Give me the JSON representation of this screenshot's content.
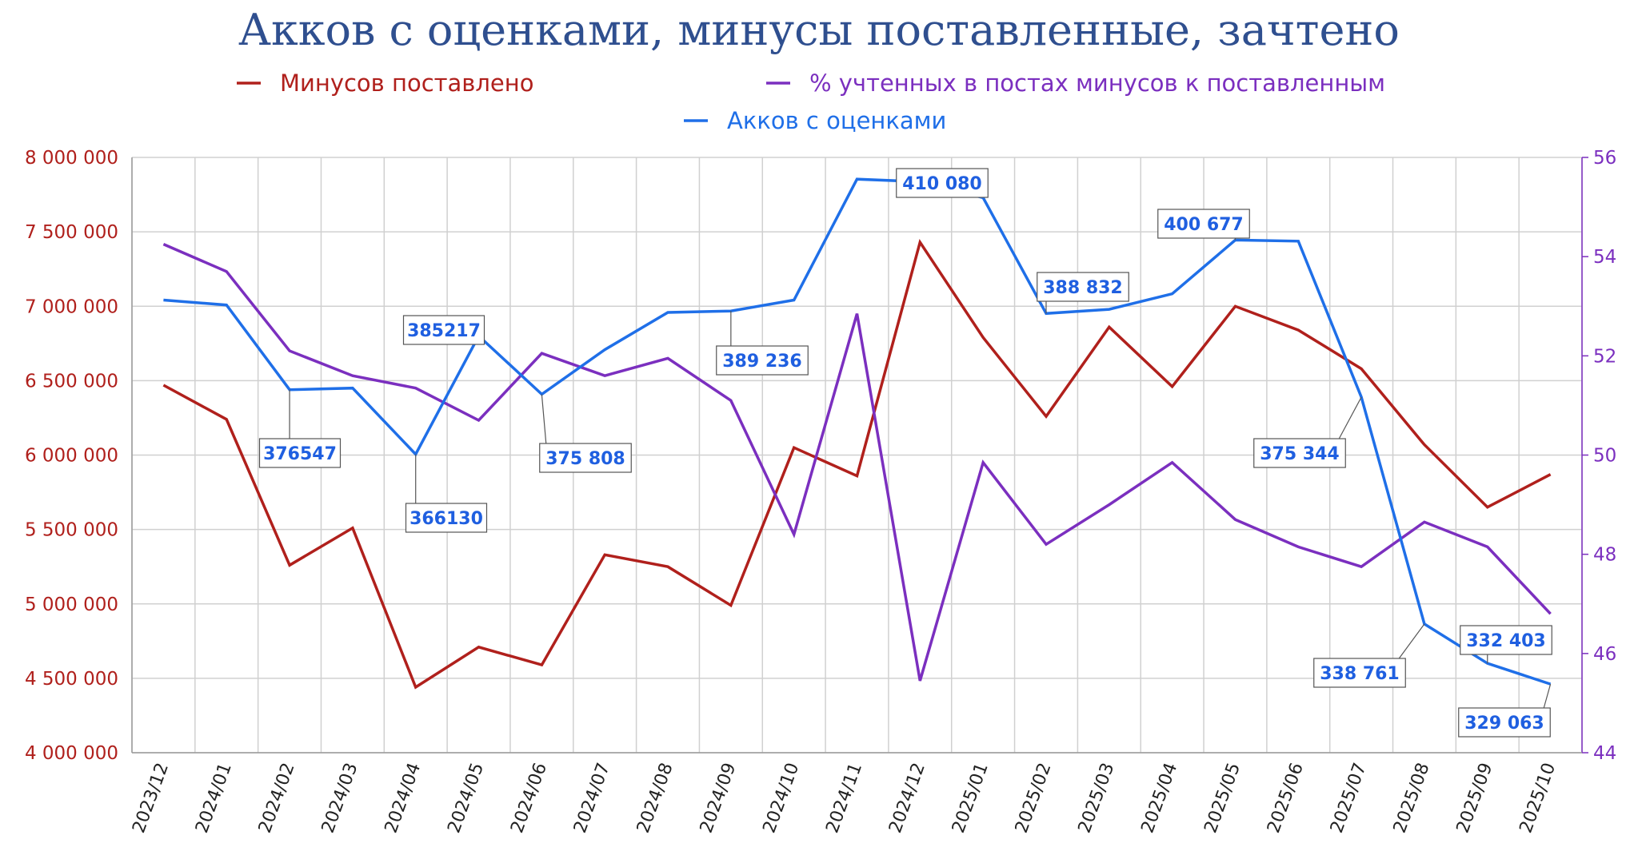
{
  "chart_data": {
    "type": "line",
    "title": "Акков с оценками, минусы поставленные, зачтено",
    "categories": [
      "2023/12",
      "2024/01",
      "2024/02",
      "2024/03",
      "2024/04",
      "2024/05",
      "2024/06",
      "2024/07",
      "2024/08",
      "2024/09",
      "2024/10",
      "2024/11",
      "2024/12",
      "2025/01",
      "2025/02",
      "2025/03",
      "2025/04",
      "2025/05",
      "2025/06",
      "2025/07",
      "2025/08",
      "2025/09",
      "2025/10"
    ],
    "left_axis": {
      "ylim": [
        4000000,
        8000000
      ],
      "ticks": [
        4000000,
        4500000,
        5000000,
        5500000,
        6000000,
        6500000,
        7000000,
        7500000,
        8000000
      ],
      "tick_labels": [
        "4 000 000",
        "4 500 000",
        "5 000 000",
        "5 500 000",
        "6 000 000",
        "6 500 000",
        "7 000 000",
        "7 500 000",
        "8 000 000"
      ]
    },
    "right_axis": {
      "ylim": [
        44,
        56
      ],
      "ticks": [
        44,
        46,
        48,
        50,
        52,
        54,
        56
      ],
      "tick_labels": [
        "44",
        "46",
        "48",
        "50",
        "52",
        "54",
        "56"
      ]
    },
    "accounts_axis_range": [
      318000,
      414000
    ],
    "grid": true,
    "legend_position": "top",
    "series": [
      {
        "name": "Минусов поставлено",
        "color": "#b0201c",
        "axis": "left",
        "values": [
          6470000,
          6240000,
          5260000,
          5510000,
          4440000,
          4710000,
          4590000,
          5330000,
          5250000,
          4990000,
          6050000,
          5860000,
          7430000,
          6790000,
          6260000,
          6860000,
          6460000,
          7000000,
          6840000,
          6580000,
          6070000,
          5650000,
          5870000
        ]
      },
      {
        "name": "% учтенных в постах минусов к поставленным",
        "color": "#7b2fbf",
        "axis": "right",
        "values": [
          54.25,
          53.7,
          52.1,
          51.6,
          51.35,
          50.7,
          52.05,
          51.6,
          51.95,
          51.1,
          48.4,
          52.85,
          45.45,
          49.85,
          48.2,
          49.0,
          49.85,
          48.7,
          48.15,
          47.75,
          48.65,
          48.15,
          46.8
        ]
      },
      {
        "name": "Акков с оценками",
        "color": "#1f6fe8",
        "axis": "accounts",
        "values": [
          391000,
          390200,
          376547,
          376800,
          366130,
          385217,
          375808,
          383000,
          389000,
          389236,
          391000,
          410500,
          410080,
          407500,
          388832,
          389500,
          392000,
          400677,
          400500,
          375344,
          338761,
          332403,
          329063
        ]
      }
    ],
    "annotations": [
      {
        "text": "376547",
        "index": 2
      },
      {
        "text": "366130",
        "index": 4
      },
      {
        "text": "385217",
        "index": 5
      },
      {
        "text": "375 808",
        "index": 6
      },
      {
        "text": "389 236",
        "index": 9
      },
      {
        "text": "410 080",
        "index": 12
      },
      {
        "text": "388 832",
        "index": 14
      },
      {
        "text": "400 677",
        "index": 17
      },
      {
        "text": "375 344",
        "index": 19
      },
      {
        "text": "338 761",
        "index": 20
      },
      {
        "text": "332 403",
        "index": 21
      },
      {
        "text": "329 063",
        "index": 22
      }
    ]
  }
}
